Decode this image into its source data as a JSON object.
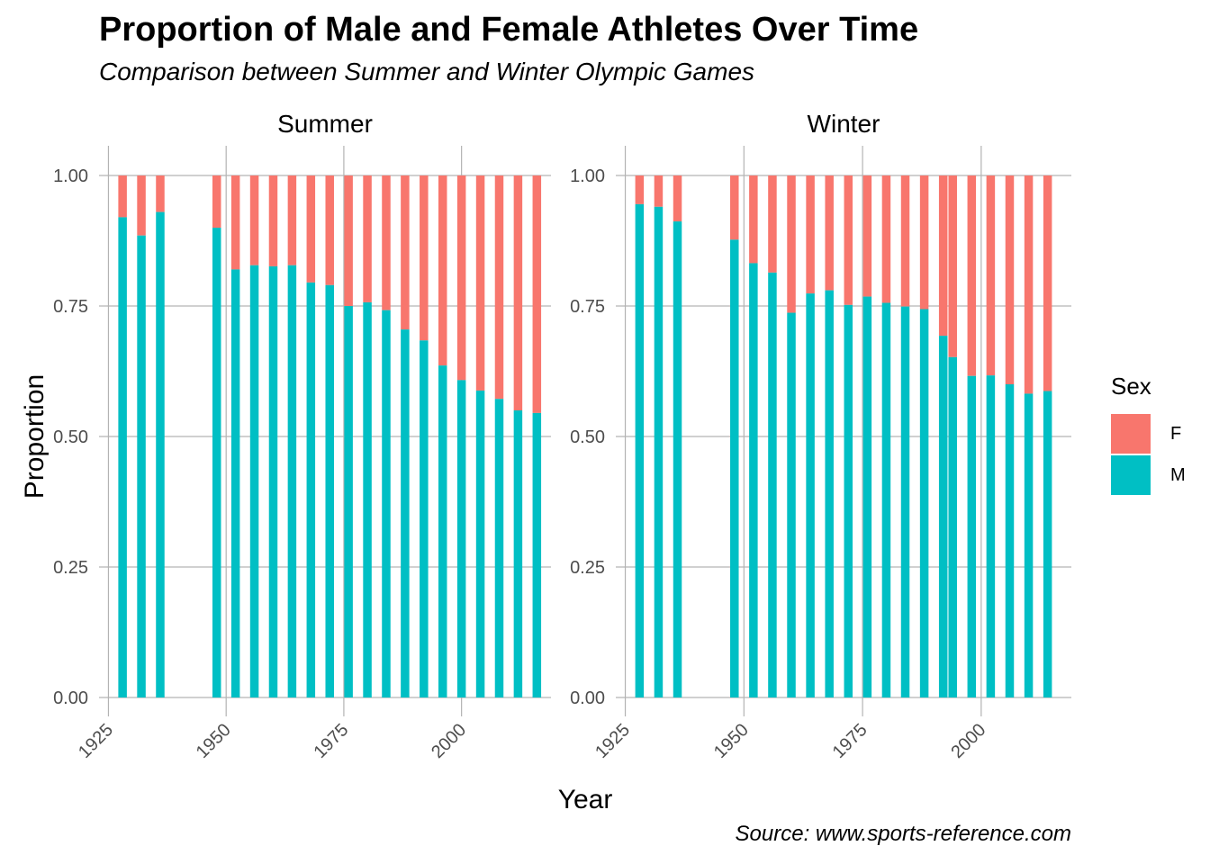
{
  "title": "Proportion of Male and Female Athletes Over Time",
  "subtitle": "Comparison between Summer and Winter Olympic Games",
  "caption": "Source: www.sports-reference.com",
  "xlabel": "Year",
  "ylabel": "Proportion",
  "legend": {
    "title": "Sex",
    "items": [
      {
        "label": "F",
        "color": "#F8766D"
      },
      {
        "label": "M",
        "color": "#00BFC4"
      }
    ]
  },
  "chart_data": {
    "type": "bar",
    "stacked": true,
    "xlim": [
      1923,
      2019
    ],
    "ylim": [
      0,
      1
    ],
    "x_ticks": [
      "1925",
      "1950",
      "1975",
      "2000"
    ],
    "y_ticks": [
      "0.00",
      "0.25",
      "0.50",
      "0.75",
      "1.00"
    ],
    "grid": true,
    "legend_position": "right",
    "facets": [
      {
        "name": "Summer",
        "years": [
          1928,
          1932,
          1936,
          1948,
          1952,
          1956,
          1960,
          1964,
          1968,
          1972,
          1976,
          1980,
          1984,
          1988,
          1992,
          1996,
          2000,
          2004,
          2008,
          2012,
          2016
        ],
        "M": [
          0.92,
          0.885,
          0.93,
          0.9,
          0.82,
          0.828,
          0.826,
          0.828,
          0.795,
          0.79,
          0.75,
          0.757,
          0.742,
          0.705,
          0.684,
          0.636,
          0.608,
          0.588,
          0.572,
          0.55,
          0.545
        ]
      },
      {
        "name": "Winter",
        "years": [
          1928,
          1932,
          1936,
          1948,
          1952,
          1956,
          1960,
          1964,
          1968,
          1972,
          1976,
          1980,
          1984,
          1988,
          1992,
          1994,
          1998,
          2002,
          2006,
          2010,
          2014
        ],
        "M": [
          0.945,
          0.94,
          0.912,
          0.877,
          0.832,
          0.814,
          0.737,
          0.774,
          0.78,
          0.752,
          0.768,
          0.756,
          0.749,
          0.744,
          0.693,
          0.652,
          0.616,
          0.617,
          0.6,
          0.582,
          0.587
        ]
      }
    ]
  }
}
